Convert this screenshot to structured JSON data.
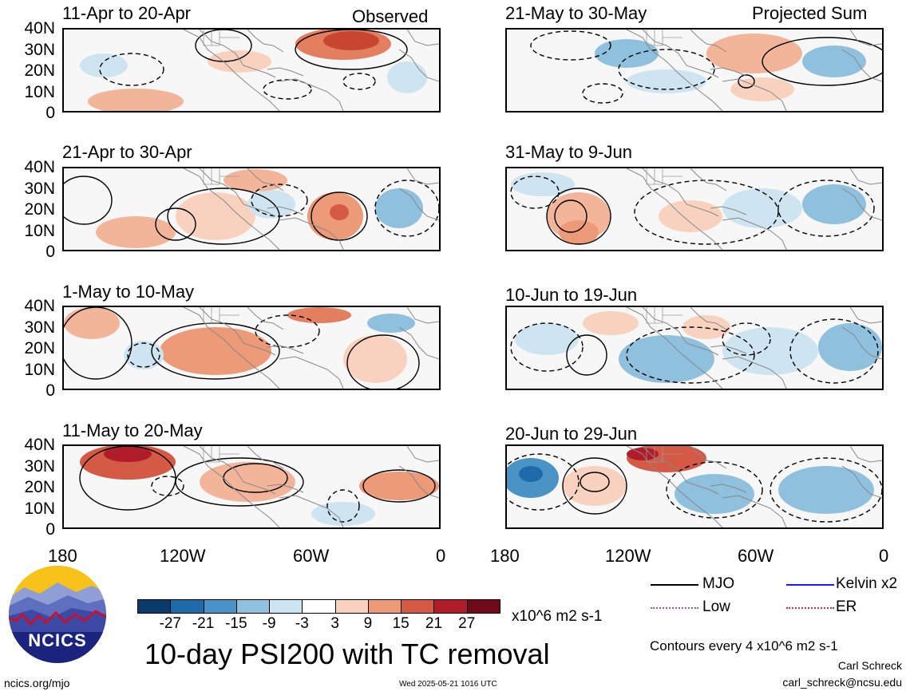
{
  "figure": {
    "title": "10-day PSI200 with TC removal",
    "units": "x10^6 m2 s-1",
    "contour_note": "Contours every 4 x10^6 m2 s-1",
    "author_name": "Carl Schreck",
    "author_email": "carl_schreck@ncsu.edu",
    "site": "ncics.org/mjo",
    "timestamp": "Wed 2025-05-21 1016 UTC",
    "logo_text": "NCICS",
    "left_column_label": "Observed",
    "right_column_label": "Projected Sum"
  },
  "panels_left": [
    {
      "title": "11-Apr to 20-Apr"
    },
    {
      "title": "21-Apr to 30-Apr"
    },
    {
      "title": "1-May to 10-May"
    },
    {
      "title": "11-May to 20-May"
    }
  ],
  "panels_right": [
    {
      "title": "21-May to 30-May"
    },
    {
      "title": "31-May to 9-Jun"
    },
    {
      "title": "10-Jun to 19-Jun"
    },
    {
      "title": "20-Jun to 29-Jun"
    }
  ],
  "lat_labels": [
    "40N",
    "30N",
    "20N",
    "10N",
    "0"
  ],
  "lon_labels": [
    "180",
    "120W",
    "60W",
    "0"
  ],
  "colorbar": {
    "ticks": [
      "-27",
      "-21",
      "-15",
      "-9",
      "-3",
      "3",
      "9",
      "15",
      "21",
      "27"
    ],
    "colors": [
      "#0a3a6b",
      "#1f6aa8",
      "#4a93c6",
      "#8fc0dd",
      "#cfe4f1",
      "#ffffff",
      "#f9d2bf",
      "#ec9a78",
      "#d45a45",
      "#b01c2a",
      "#6e0a1a"
    ]
  },
  "legend": [
    {
      "label": "MJO",
      "color": "#000000"
    },
    {
      "label": "Kelvin x2",
      "color": "#1a1aff"
    },
    {
      "label": "Low",
      "color": "#a64ddb"
    },
    {
      "label": "ER",
      "color": "#ff2020"
    }
  ]
}
